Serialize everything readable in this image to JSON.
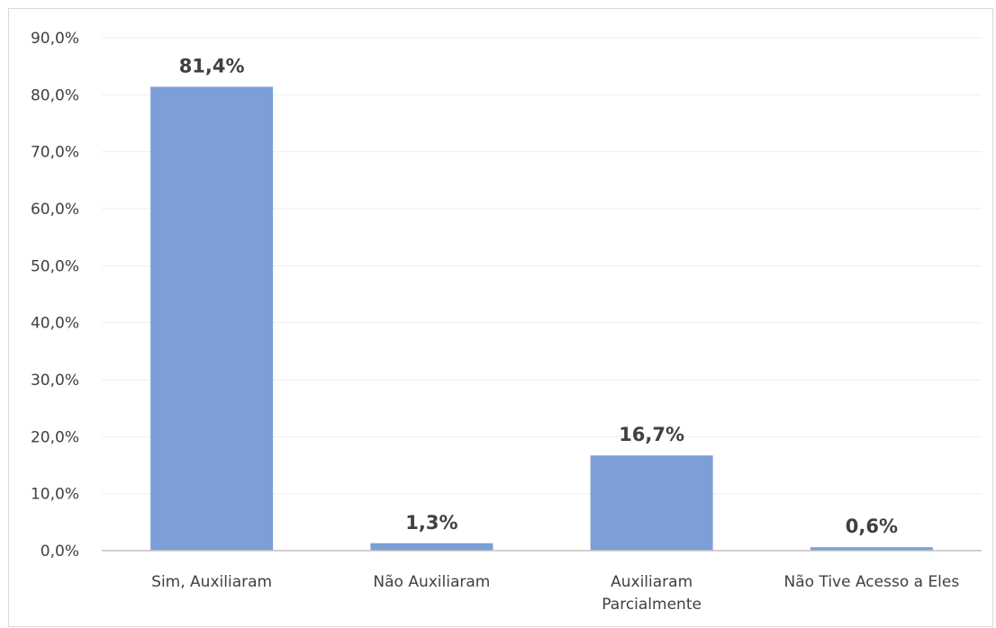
{
  "chart_data": {
    "type": "bar",
    "categories": [
      [
        "Sim, Auxiliaram"
      ],
      [
        "Não Auxiliaram"
      ],
      [
        "Auxiliaram",
        "Parcialmente"
      ],
      [
        "Não Tive Acesso a Eles"
      ]
    ],
    "values": [
      81.4,
      1.3,
      16.7,
      0.6
    ],
    "data_labels": [
      "81,4%",
      "1,3%",
      "16,7%",
      "0,6%"
    ],
    "y_ticks": [
      "0,0%",
      "10,0%",
      "20,0%",
      "30,0%",
      "40,0%",
      "50,0%",
      "60,0%",
      "70,0%",
      "80,0%",
      "90,0%"
    ],
    "ylim": [
      0,
      90
    ],
    "grid": true,
    "legend": "none",
    "title": "",
    "xlabel": "",
    "ylabel": "",
    "colors": {
      "bar": "#7b9fd6",
      "grid": "#eeeeee",
      "axis": "#c0c0c0",
      "text": "#404040"
    }
  }
}
